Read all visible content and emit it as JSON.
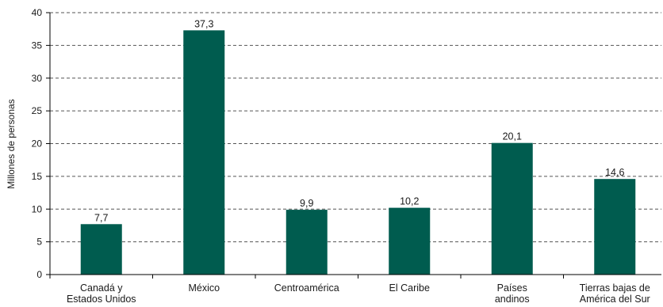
{
  "chart_data": {
    "type": "bar",
    "title": "",
    "xlabel": "",
    "ylabel": "Millones de personas",
    "categories": [
      [
        "Canadá y",
        "Estados Unidos"
      ],
      [
        "México"
      ],
      [
        "Centroamérica"
      ],
      [
        "El Caribe"
      ],
      [
        "Países",
        "andinos"
      ],
      [
        "Tierras bajas de",
        "América del Sur"
      ]
    ],
    "values": [
      7.7,
      37.3,
      9.9,
      10.2,
      20.1,
      14.6
    ],
    "value_labels": [
      "7,7",
      "37,3",
      "9,9",
      "10,2",
      "20,1",
      "14,6"
    ],
    "ylim": [
      0,
      40
    ],
    "yticks": [
      0,
      5,
      10,
      15,
      20,
      25,
      30,
      35,
      40
    ],
    "grid": true,
    "legend": "none",
    "colors": {
      "bar": "#005c4f",
      "grid": "#555555",
      "axis": "#000000"
    }
  }
}
